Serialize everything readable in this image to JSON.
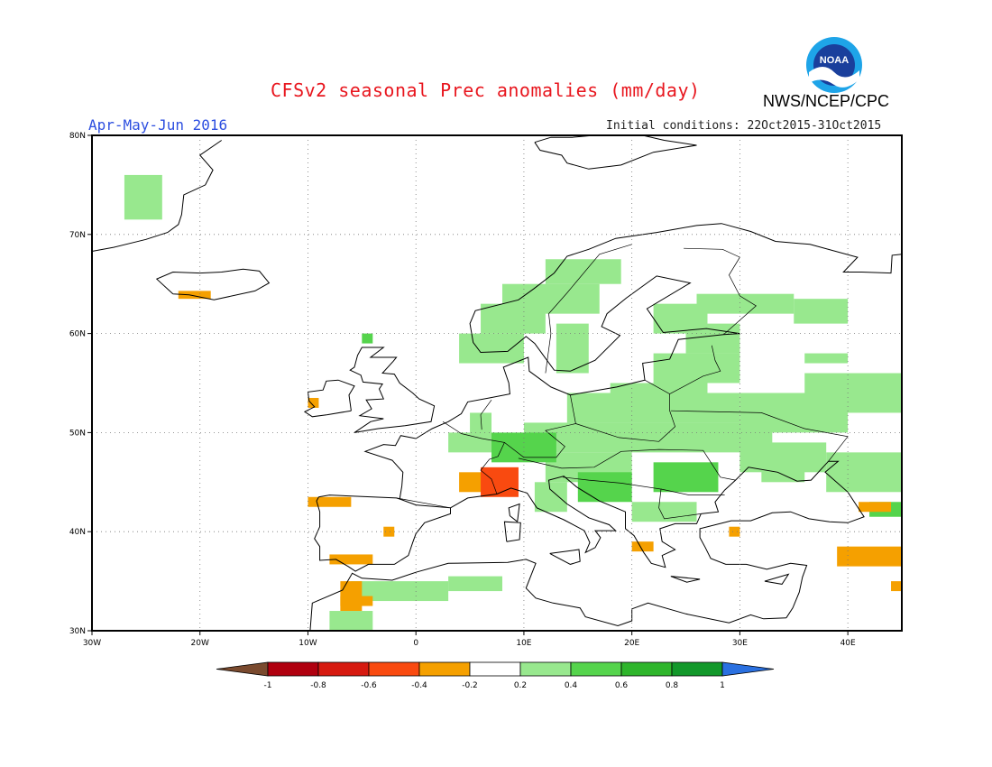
{
  "header": {
    "title": "CFSv2 seasonal Prec anomalies (mm/day)",
    "agency": "NWS/NCEP/CPC",
    "season": "Apr-May-Jun 2016",
    "initial_conditions": "Initial conditions: 22Oct2015-31Oct2015",
    "logo_text": "NOAA"
  },
  "map": {
    "region": "Europe",
    "lon_range": [
      -30,
      45
    ],
    "lat_range": [
      30,
      80
    ],
    "lat_labels": [
      "30N",
      "40N",
      "50N",
      "60N",
      "70N",
      "80N"
    ],
    "lon_labels": [
      "30W",
      "20W",
      "10W",
      "0",
      "10E",
      "20E",
      "30E",
      "40E"
    ],
    "grid": "dotted"
  },
  "legend": {
    "ticks": [
      "-1",
      "-0.8",
      "-0.6",
      "-0.4",
      "-0.2",
      "0.2",
      "0.4",
      "0.6",
      "0.8",
      "1"
    ],
    "colors": [
      "#7a4a2e",
      "#b0000f",
      "#d61a10",
      "#f94a10",
      "#f5a000",
      "#ffffff",
      "#98e88e",
      "#55d44c",
      "#2eb52b",
      "#12982a",
      "#2a70e0"
    ]
  },
  "anomaly_regions": [
    {
      "name": "Scandinavia",
      "class": "0.2-0.4"
    },
    {
      "name": "Central and Eastern Europe",
      "class": "0.2-0.4"
    },
    {
      "name": "Balkans",
      "class": "0.4-0.6"
    },
    {
      "name": "Southern France / Alps",
      "class": "-0.6--0.4"
    },
    {
      "name": "Iberia",
      "class": "-0.4--0.2"
    },
    {
      "name": "Turkey / Middle East",
      "class": "-0.4--0.2"
    },
    {
      "name": "Greenland",
      "class": "0.2-0.4"
    },
    {
      "name": "Iceland",
      "class": "-0.4--0.2"
    },
    {
      "name": "North Africa",
      "class": "0.2-0.4"
    }
  ]
}
